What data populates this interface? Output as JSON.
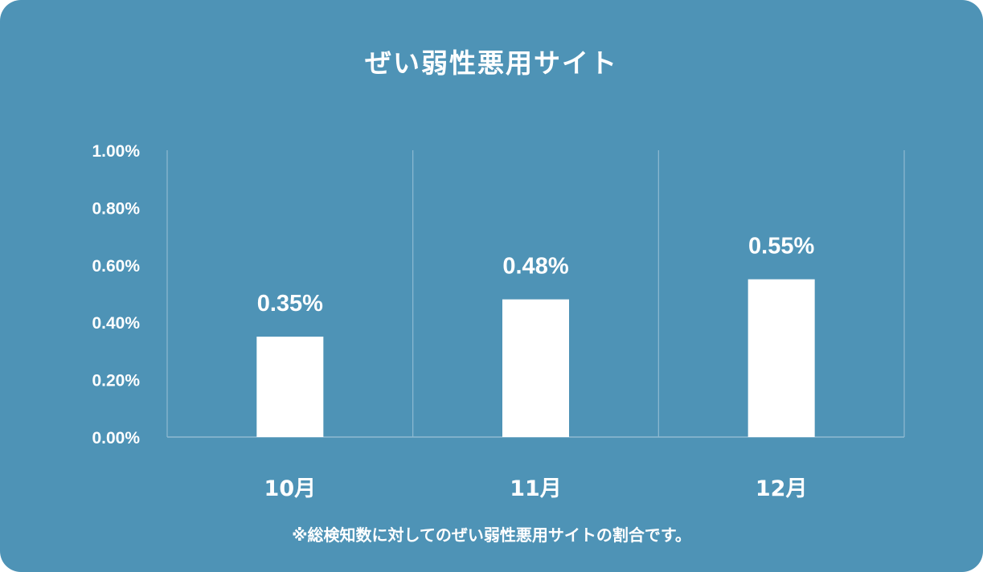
{
  "chart_data": {
    "type": "bar",
    "title": "ぜい弱性悪用サイト",
    "categories": [
      "10月",
      "11月",
      "12月"
    ],
    "values": [
      0.35,
      0.48,
      0.55
    ],
    "value_labels": [
      "0.35%",
      "0.48%",
      "0.55%"
    ],
    "ylim": [
      0,
      1.0
    ],
    "yticks": [
      0.0,
      0.2,
      0.4,
      0.6,
      0.8,
      1.0
    ],
    "ytick_labels": [
      "0.00%",
      "0.20%",
      "0.40%",
      "0.60%",
      "0.80%",
      "1.00%"
    ],
    "xlabel": "",
    "ylabel": "",
    "grid": "vertical separators",
    "legend": "none",
    "note": "※総検知数に対してのぜい弱性悪用サイトの割合です。"
  },
  "colors": {
    "background": "#4e93b6",
    "bar": "#ffffff",
    "text": "#ffffff",
    "gridline": "#8fbad1"
  }
}
